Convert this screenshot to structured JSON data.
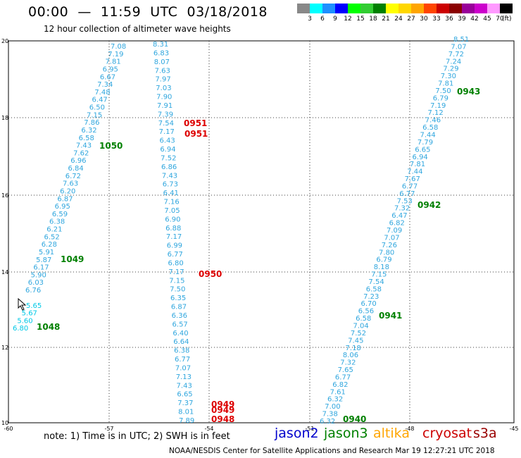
{
  "header": {
    "title": "00:00  —  11:59  UTC  03/18/2018",
    "subtitle": "12 hour collection of altimeter wave heights"
  },
  "legend": {
    "colors": [
      "#888888",
      "#00ffff",
      "#1e90ff",
      "#0000ff",
      "#00ff00",
      "#32cd32",
      "#008000",
      "#ffff00",
      "#ffd700",
      "#ffa500",
      "#ff4500",
      "#cc0000",
      "#8b0000",
      "#990099",
      "#cc00cc",
      "#ff99ff",
      "#000000"
    ],
    "labels": [
      "3",
      "6",
      "9",
      "12",
      "15",
      "18",
      "21",
      "24",
      "27",
      "30",
      "33",
      "36",
      "39",
      "42",
      "45",
      "70"
    ],
    "unit": "(ft)"
  },
  "axes": {
    "x_ticks": [
      "-60",
      "-57",
      "-54",
      "-51",
      "-48",
      "-45"
    ],
    "y_ticks": [
      "20",
      "18",
      "16",
      "14",
      "12",
      "10"
    ]
  },
  "tracks": [
    {
      "color": "#2fa6de",
      "values": [
        "7.08",
        "7.19",
        "7.81",
        "6.95",
        "6.67",
        "7.34",
        "7.48",
        "6.47",
        "6.50",
        "7.15",
        "7.86",
        "6.32",
        "6.58",
        "7.43",
        "7.62",
        "6.96",
        "6.84",
        "6.72",
        "7.63",
        "6.20",
        "6.87",
        "6.95",
        "6.59",
        "6.38",
        "6.21",
        "6.52",
        "6.28",
        "5.91",
        "5.87",
        "6.17",
        "5.90",
        "6.03",
        "6.76"
      ]
    },
    {
      "color": "#00c8e6",
      "values": [
        "5.65",
        "5.67",
        "5.60",
        "6.80"
      ]
    },
    {
      "color": "#2fa6de",
      "values": [
        "8.31",
        "6.83",
        "8.07",
        "7.63",
        "7.97",
        "7.03",
        "7.90",
        "7.91",
        "7.39",
        "7.54",
        "7.17",
        "6.43",
        "6.94",
        "7.52",
        "6.86",
        "7.43",
        "6.73",
        "6.41",
        "7.16",
        "7.05",
        "6.90",
        "6.88",
        "7.17",
        "6.99",
        "6.77",
        "6.80",
        "7.17",
        "7.15",
        "7.50",
        "6.35",
        "6.87",
        "6.36",
        "6.57",
        "6.40",
        "6.64",
        "6.38",
        "6.77",
        "7.07",
        "7.13",
        "7.43",
        "6.65",
        "7.37",
        "8.01",
        "7.89"
      ]
    },
    {
      "color": "#2fa6de",
      "values": [
        "8.51",
        "7.07",
        "7.72",
        "7.24",
        "7.29",
        "7.30",
        "7.81",
        "7.50",
        "6.79",
        "7.19",
        "7.12",
        "7.46",
        "6.58",
        "7.44",
        "7.79",
        "6.65",
        "6.94",
        "7.81",
        "7.44",
        "7.67",
        "6.77",
        "6.77",
        "7.53",
        "7.32",
        "6.47",
        "6.82",
        "7.09",
        "7.07",
        "7.26",
        "7.80",
        "6.79",
        "8.18",
        "7.15",
        "7.54",
        "6.58",
        "7.23",
        "6.70",
        "6.56",
        "6.58",
        "7.04",
        "7.52",
        "7.45",
        "7.18",
        "8.06",
        "7.32",
        "7.65",
        "6.77",
        "6.82",
        "7.61",
        "6.32",
        "7.00",
        "7.38",
        "6.32"
      ]
    }
  ],
  "pass_labels": [
    {
      "text": "1050",
      "color": "#008000"
    },
    {
      "text": "1049",
      "color": "#008000"
    },
    {
      "text": "1048",
      "color": "#008000"
    },
    {
      "text": "0951",
      "color": "#dd0000"
    },
    {
      "text": "0951",
      "color": "#dd0000"
    },
    {
      "text": "0950",
      "color": "#dd0000"
    },
    {
      "text": "0949",
      "color": "#dd0000"
    },
    {
      "text": "0949",
      "color": "#dd0000"
    },
    {
      "text": "0948",
      "color": "#dd0000"
    },
    {
      "text": "0943",
      "color": "#008000"
    },
    {
      "text": "0942",
      "color": "#008000"
    },
    {
      "text": "0941",
      "color": "#008000"
    },
    {
      "text": "0940",
      "color": "#008000"
    }
  ],
  "footer": {
    "note": "note:  1) Time is in UTC;  2) SWH is in feet",
    "satellites": [
      {
        "name": "jason2",
        "color": "#0000cc"
      },
      {
        "name": "jason3",
        "color": "#008000"
      },
      {
        "name": "altika",
        "color": "#ffa500"
      },
      {
        "name": "cryosat",
        "color": "#cc0000"
      },
      {
        "name": "s3a",
        "color": "#990000"
      }
    ],
    "credit": "NOAA/NESDIS  Center  for  Satellite  Applications  and  Research       Mar  19  12:27:21  UTC  2018"
  }
}
